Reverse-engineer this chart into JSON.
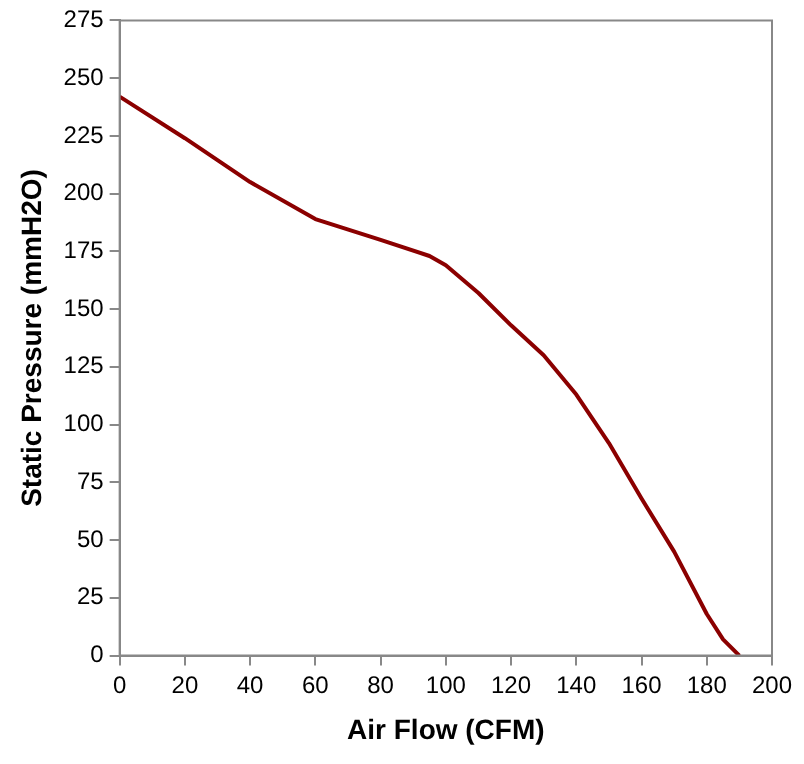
{
  "chart_data": {
    "type": "line",
    "xlabel": "Air Flow (CFM)",
    "ylabel": "Static Pressure (mmH2O)",
    "x": [
      0,
      20,
      40,
      60,
      80,
      95,
      100,
      110,
      120,
      130,
      140,
      150,
      160,
      170,
      180,
      185,
      190
    ],
    "series": [
      {
        "color": "#8b0000",
        "values": [
          242,
          224,
          205,
          189,
          180,
          173,
          169,
          157,
          143,
          130,
          113,
          92,
          68,
          45,
          18,
          7,
          0
        ]
      }
    ],
    "xlim": [
      0,
      200
    ],
    "xticks": [
      0,
      20,
      40,
      60,
      80,
      100,
      120,
      140,
      160,
      180,
      200
    ],
    "ylim": [
      0,
      275
    ],
    "yticks": [
      0,
      25,
      50,
      75,
      100,
      125,
      150,
      175,
      200,
      225,
      250,
      275
    ],
    "grid": false,
    "legend": false,
    "marker": "none",
    "line_style": "solid"
  }
}
